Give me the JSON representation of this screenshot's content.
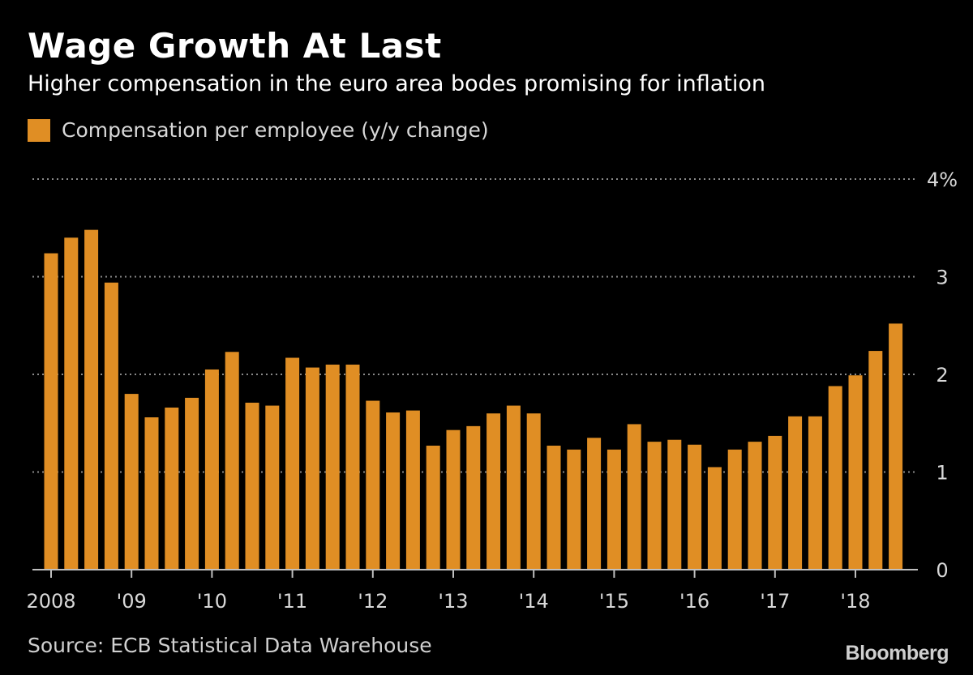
{
  "header": {
    "title": "Wage Growth At Last",
    "subtitle": "Higher compensation in the euro area bodes promising for inflation"
  },
  "legend": {
    "label": "Compensation per employee (y/y change)",
    "color": "#E08E24"
  },
  "footer": {
    "source": "Source: ECB Statistical Data Warehouse",
    "logo": "Bloomberg"
  },
  "chart_data": {
    "type": "bar",
    "series": [
      {
        "name": "Compensation per employee (y/y change)",
        "values": [
          3.24,
          3.4,
          3.48,
          2.94,
          1.8,
          1.56,
          1.66,
          1.76,
          2.05,
          2.23,
          1.71,
          1.68,
          2.17,
          2.07,
          2.1,
          2.1,
          1.73,
          1.61,
          1.63,
          1.27,
          1.43,
          1.47,
          1.6,
          1.68,
          1.6,
          1.27,
          1.23,
          1.35,
          1.23,
          1.49,
          1.31,
          1.33,
          1.28,
          1.05,
          1.23,
          1.31,
          1.37,
          1.57,
          1.57,
          1.88,
          1.99,
          2.24,
          2.52
        ]
      }
    ],
    "x_tick_labels": [
      "2008",
      "'09",
      "'10",
      "'11",
      "'12",
      "'13",
      "'14",
      "'15",
      "'16",
      "'17",
      "'18"
    ],
    "x_tick_positions": [
      0,
      4,
      8,
      12,
      16,
      20,
      24,
      28,
      32,
      36,
      40
    ],
    "y_ticks": [
      0,
      1,
      2,
      3,
      4
    ],
    "y_tick_labels": [
      "0",
      "1",
      "2",
      "3",
      "4%"
    ],
    "ylim": [
      0,
      4
    ],
    "grid": true,
    "bar_color": "#E08E24",
    "grid_color": "#8a8a8a",
    "axis_color": "#bfbfbf"
  }
}
